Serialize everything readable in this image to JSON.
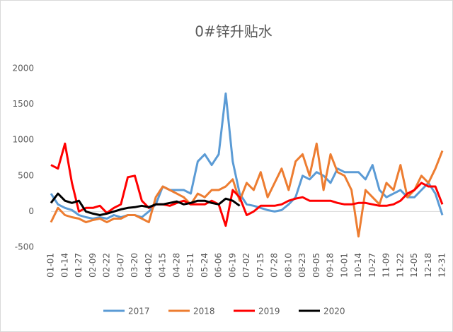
{
  "chart_data": {
    "type": "line",
    "title": "0#锌升贴水",
    "categories": [
      "01-01",
      null,
      "01-14",
      null,
      "01-27",
      null,
      "02-09",
      null,
      "02-22",
      null,
      "03-07",
      null,
      "03-20",
      null,
      "04-02",
      null,
      "04-15",
      null,
      "04-28",
      null,
      "05-11",
      null,
      "05-24",
      null,
      "06-06",
      null,
      "06-19",
      null,
      "07-02",
      null,
      "07-15",
      null,
      "07-28",
      null,
      "08-10",
      null,
      "08-23",
      null,
      "09-05",
      null,
      "09-18",
      null,
      "10-01",
      null,
      "10-14",
      null,
      "10-27",
      null,
      "11-09",
      null,
      "11-22",
      null,
      "12-05",
      null,
      "12-18",
      null,
      "12-31"
    ],
    "series": [
      {
        "name": "2017",
        "color": "#5b9bd5",
        "values": [
          250,
          100,
          50,
          20,
          -50,
          -80,
          -100,
          -80,
          -100,
          -50,
          -80,
          -50,
          -50,
          -80,
          0,
          100,
          350,
          300,
          300,
          300,
          250,
          700,
          800,
          650,
          800,
          1650,
          700,
          250,
          100,
          80,
          50,
          20,
          0,
          20,
          100,
          200,
          500,
          450,
          550,
          500,
          400,
          600,
          550,
          550,
          550,
          450,
          650,
          300,
          200,
          250,
          300,
          200,
          200,
          300,
          400,
          250,
          -50
        ]
      },
      {
        "name": "2018",
        "color": "#ed7d31",
        "values": [
          -150,
          50,
          -50,
          -80,
          -100,
          -150,
          -120,
          -100,
          -150,
          -100,
          -100,
          -50,
          -50,
          -100,
          -150,
          200,
          350,
          300,
          250,
          200,
          100,
          250,
          200,
          300,
          300,
          350,
          450,
          150,
          400,
          300,
          550,
          200,
          400,
          600,
          300,
          700,
          800,
          500,
          950,
          300,
          800,
          550,
          500,
          300,
          -350,
          300,
          200,
          100,
          400,
          300,
          650,
          200,
          300,
          500,
          400,
          600,
          850
        ]
      },
      {
        "name": "2019",
        "color": "#ff0000",
        "values": [
          650,
          600,
          950,
          400,
          0,
          50,
          50,
          80,
          -20,
          50,
          100,
          480,
          500,
          150,
          50,
          100,
          100,
          80,
          120,
          150,
          100,
          100,
          100,
          150,
          100,
          -200,
          300,
          200,
          -50,
          0,
          80,
          80,
          80,
          100,
          150,
          180,
          200,
          150,
          150,
          150,
          150,
          120,
          100,
          100,
          120,
          120,
          100,
          80,
          80,
          100,
          150,
          250,
          300,
          400,
          350,
          350,
          100
        ]
      },
      {
        "name": "2020",
        "color": "#000000",
        "values": [
          120,
          250,
          150,
          120,
          150,
          0,
          -30,
          -50,
          -30,
          0,
          30,
          50,
          60,
          80,
          60,
          100,
          100,
          120,
          140,
          100,
          120,
          150,
          150,
          120,
          100,
          180,
          150,
          80,
          null,
          null,
          null,
          null,
          null,
          null,
          null,
          null,
          null,
          null,
          null,
          null,
          null,
          null,
          null,
          null,
          null,
          null,
          null,
          null,
          null,
          null,
          null,
          null,
          null,
          null,
          null,
          null,
          null
        ]
      }
    ],
    "ylim": [
      -500,
      2000
    ],
    "yticks": [
      -500,
      0,
      500,
      1000,
      1500,
      2000
    ],
    "legend": "bottom"
  }
}
